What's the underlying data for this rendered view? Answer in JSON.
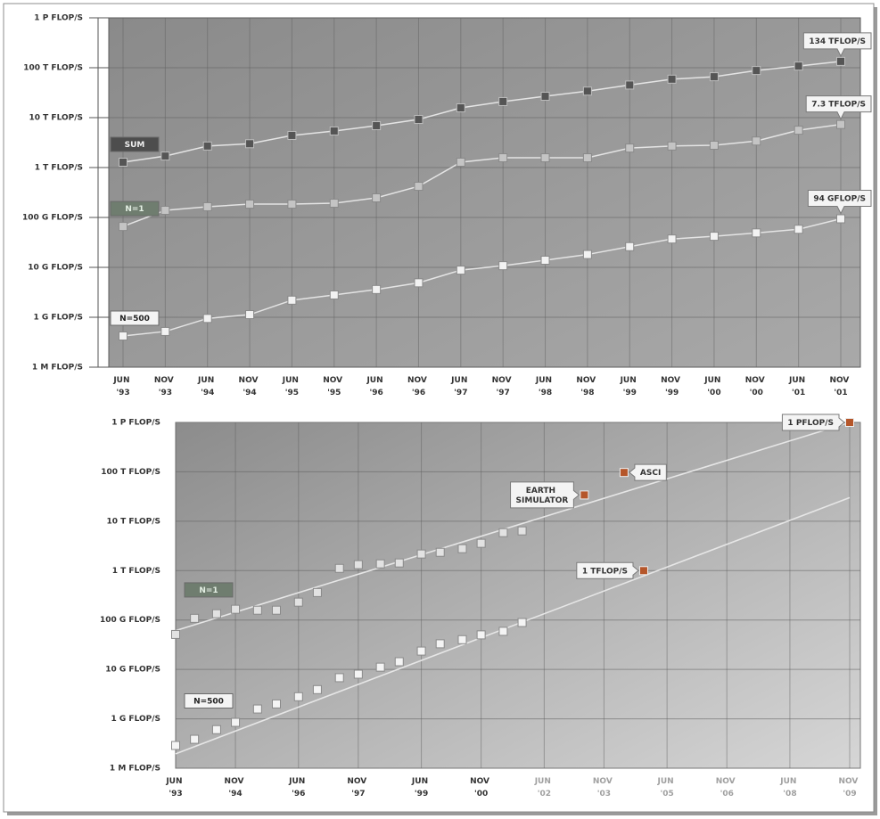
{
  "chart_data": [
    {
      "type": "line",
      "log_scale": true,
      "grid": true,
      "lines": true,
      "categories": [
        "JUN '93",
        "NOV '93",
        "JUN '94",
        "NOV '94",
        "JUN '95",
        "NOV '95",
        "JUN '96",
        "NOV '96",
        "JUN '97",
        "NOV '97",
        "JUN '98",
        "NOV '98",
        "JUN '99",
        "NOV '99",
        "JUN '00",
        "NOV '00",
        "JUN '01",
        "NOV '01"
      ],
      "ylim": [
        0.001,
        1000000
      ],
      "yticks": [
        {
          "value": 0.001,
          "label": "1 M FLOP/S"
        },
        {
          "value": 1,
          "label": "1 G FLOP/S"
        },
        {
          "value": 10,
          "label": "10 G FLOP/S"
        },
        {
          "value": 100,
          "label": "100 G FLOP/S"
        },
        {
          "value": 1000,
          "label": "1 T FLOP/S"
        },
        {
          "value": 10000,
          "label": "10 T FLOP/S"
        },
        {
          "value": 100000,
          "label": "100 T FLOP/S"
        },
        {
          "value": 1000000,
          "label": "1 P FLOP/S"
        }
      ],
      "series": [
        {
          "name": "SUM",
          "color": "#555555",
          "label_color": "#4d4d4d",
          "label_text": "#f0f0f0",
          "values": [
            1280,
            1700,
            2700,
            3000,
            4400,
            5400,
            6900,
            9200,
            15700,
            21000,
            26800,
            34000,
            45000,
            59000,
            66000,
            88000,
            108000,
            134000
          ],
          "value_labels": [
            null,
            null,
            null,
            null,
            null,
            null,
            null,
            null,
            null,
            null,
            null,
            null,
            null,
            null,
            null,
            null,
            null,
            "134 TFLOP/S"
          ]
        },
        {
          "name": "N=1",
          "color": "#c4c4c4",
          "label_color": "#6f7d6f",
          "label_text": "#e4f0e4",
          "values": [
            66,
            139,
            164,
            185,
            185,
            193,
            247,
            421,
            1280,
            1570,
            1570,
            1570,
            2460,
            2700,
            2800,
            3400,
            5600,
            7300
          ],
          "value_labels": [
            null,
            null,
            null,
            null,
            null,
            null,
            null,
            null,
            null,
            null,
            null,
            null,
            null,
            null,
            null,
            null,
            null,
            "7.3 TFLOP/S"
          ]
        },
        {
          "name": "N=500",
          "color": "#f2f2f2",
          "label_color": "#f4f4f4",
          "label_text": "#222222",
          "values": [
            0.075,
            0.14,
            0.85,
            1.13,
            2.2,
            2.8,
            3.6,
            4.9,
            8.8,
            10.8,
            13.9,
            18.1,
            26,
            37,
            42,
            49,
            58,
            94
          ],
          "value_labels": [
            null,
            null,
            null,
            null,
            null,
            null,
            null,
            null,
            null,
            null,
            null,
            null,
            null,
            null,
            null,
            null,
            null,
            "94 GFLOP/S"
          ]
        }
      ]
    },
    {
      "type": "line",
      "log_scale": true,
      "grid": true,
      "lines": false,
      "x": [
        1993.42,
        1993.88,
        1994.42,
        1994.88,
        1995.42,
        1995.88,
        1996.42,
        1996.88,
        1997.42,
        1997.88,
        1998.42,
        1998.88,
        1999.42,
        1999.88,
        2000.42,
        2000.88,
        2001.42,
        2001.88
      ],
      "xlim": [
        1993.42,
        2009.88
      ],
      "xticks": [
        {
          "value": 1993.42,
          "label": "JUN '93",
          "color": "#333333"
        },
        {
          "value": 1994.88,
          "label": "NOV '94",
          "color": "#333333"
        },
        {
          "value": 1996.42,
          "label": "JUN '96",
          "color": "#333333"
        },
        {
          "value": 1997.88,
          "label": "NOV '97",
          "color": "#333333"
        },
        {
          "value": 1999.42,
          "label": "JUN '99",
          "color": "#333333"
        },
        {
          "value": 2000.88,
          "label": "NOV '00",
          "color": "#333333"
        },
        {
          "value": 2002.42,
          "label": "JUN '02",
          "color": "#a0a0a0"
        },
        {
          "value": 2003.88,
          "label": "NOV '03",
          "color": "#a0a0a0"
        },
        {
          "value": 2005.42,
          "label": "JUN '05",
          "color": "#a0a0a0"
        },
        {
          "value": 2006.88,
          "label": "NOV '06",
          "color": "#a0a0a0"
        },
        {
          "value": 2008.42,
          "label": "JUN '08",
          "color": "#a0a0a0"
        },
        {
          "value": 2009.88,
          "label": "NOV '09",
          "color": "#a0a0a0"
        }
      ],
      "ylim": [
        0.001,
        1000000
      ],
      "yticks": [
        {
          "value": 0.001,
          "label": "1 M FLOP/S"
        },
        {
          "value": 1,
          "label": "1 G FLOP/S"
        },
        {
          "value": 10,
          "label": "10 G FLOP/S"
        },
        {
          "value": 100,
          "label": "100 G FLOP/S"
        },
        {
          "value": 1000,
          "label": "1 T FLOP/S"
        },
        {
          "value": 10000,
          "label": "10 T FLOP/S"
        },
        {
          "value": 100000,
          "label": "100 T FLOP/S"
        },
        {
          "value": 1000000,
          "label": "1 P FLOP/S"
        }
      ],
      "series": [
        {
          "name": "N=1",
          "color": "#e2e2e2",
          "label_color": "#6f7d6f",
          "label_text": "#e4f0e4",
          "values": [
            51,
            108,
            134,
            165,
            158,
            158,
            230,
            360,
            1110,
            1320,
            1370,
            1430,
            2170,
            2350,
            2780,
            3570,
            5870,
            6380
          ]
        },
        {
          "name": "N=500",
          "color": "#f4f4f4",
          "label_color": "#f4f4f4",
          "label_text": "#222222",
          "values": [
            0.024,
            0.057,
            0.22,
            0.61,
            1.58,
            2.0,
            2.8,
            3.9,
            6.8,
            8.0,
            11.1,
            14.3,
            23.5,
            33,
            40,
            50,
            59,
            89
          ]
        }
      ],
      "trends": [
        {
          "x": [
            1993.42,
            2009.88
          ],
          "values": [
            61,
            1000000
          ]
        },
        {
          "x": [
            1993.42,
            2009.88
          ],
          "values": [
            0.0075,
            30000
          ]
        }
      ],
      "trend_color": "#e6e6e6",
      "point_color": "#b5562a",
      "points": [
        {
          "label": "EARTH SIMULATOR",
          "x": 2003.4,
          "value": 34000,
          "side": "left"
        },
        {
          "label": "ASCI",
          "x": 2004.37,
          "value": 97000,
          "side": "right"
        },
        {
          "label": "1 TFLOP/S",
          "x": 2004.85,
          "value": 1000,
          "side": "left"
        },
        {
          "label": "1 PFLOP/S",
          "x": 2009.88,
          "value": 1000000,
          "side": "left"
        }
      ]
    }
  ]
}
